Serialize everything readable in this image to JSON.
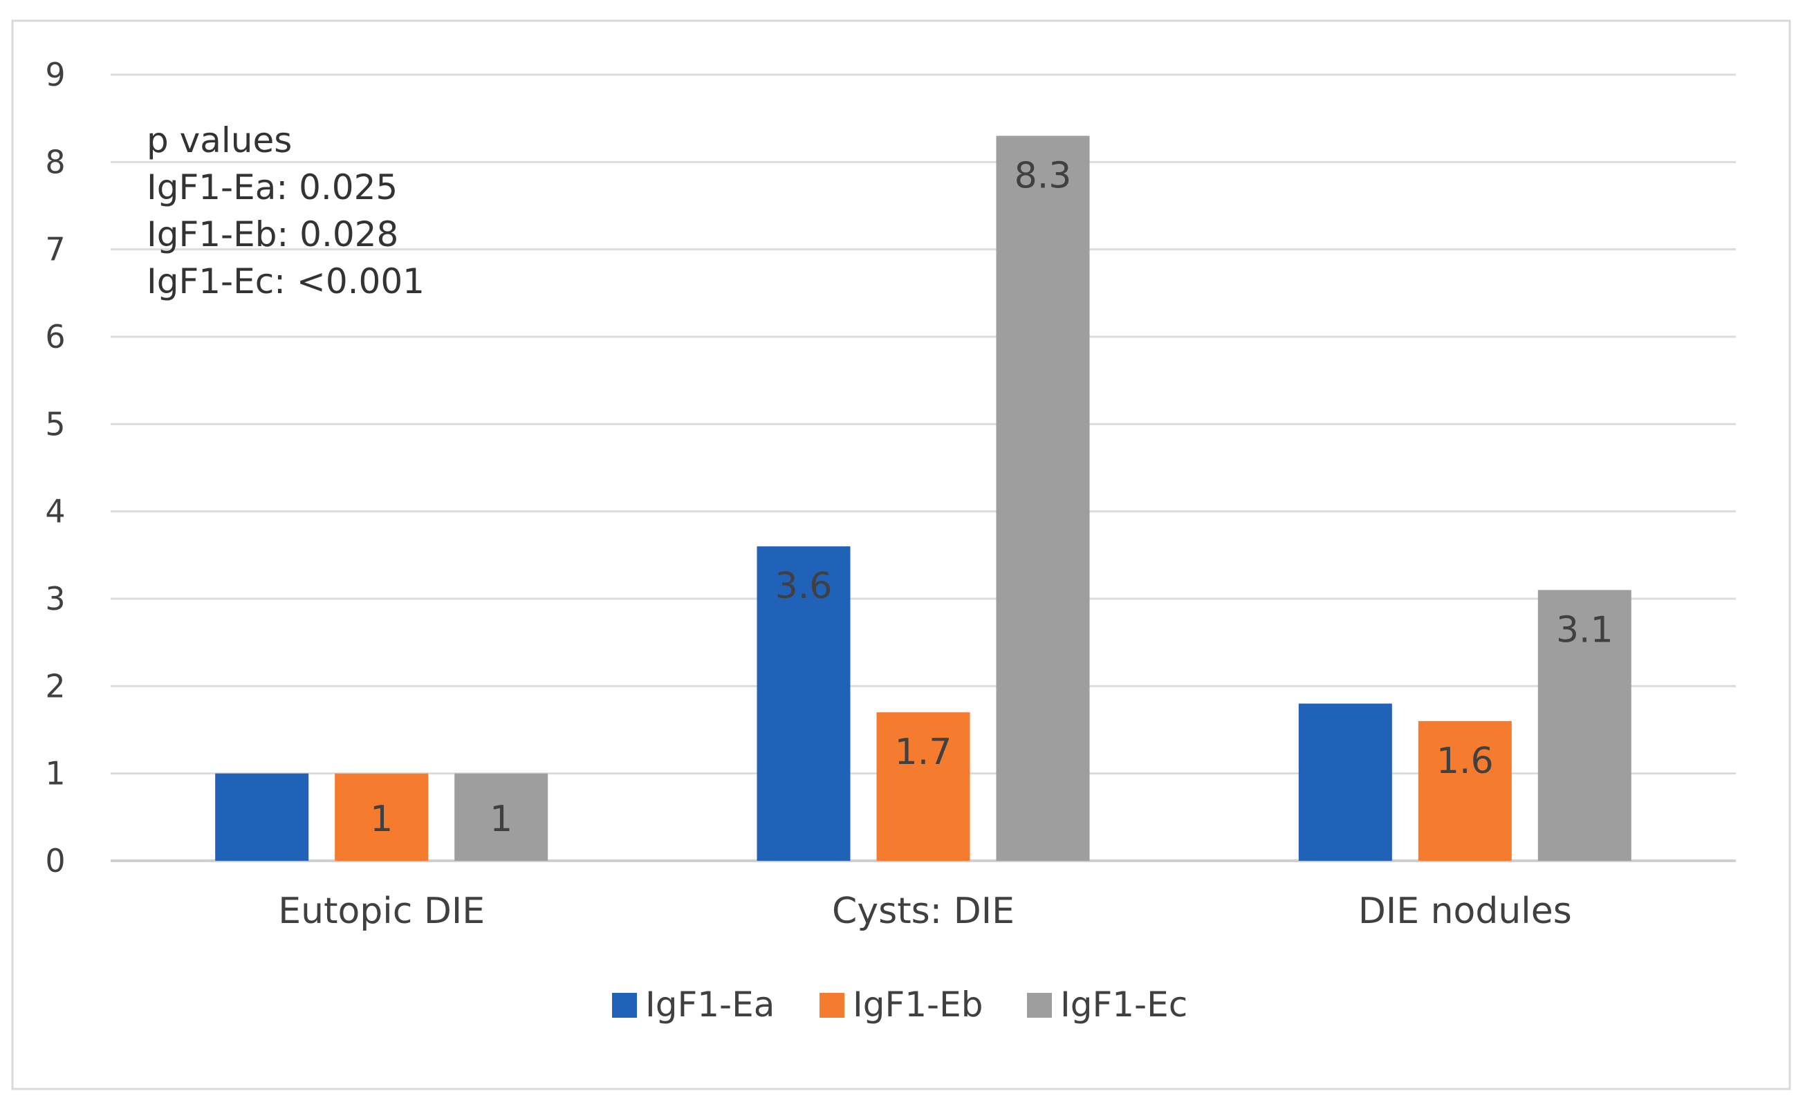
{
  "chart_data": {
    "type": "bar",
    "categories": [
      "Eutopic DIE",
      "Cysts: DIE",
      "DIE nodules"
    ],
    "series": [
      {
        "name": "IgF1-Ea",
        "color": "#2062b8",
        "values": [
          1.0,
          3.6,
          1.8
        ],
        "labels": [
          "",
          "3.6",
          ""
        ]
      },
      {
        "name": "IgF1-Eb",
        "color": "#f57c2e",
        "values": [
          1.0,
          1.7,
          1.6
        ],
        "labels": [
          "1",
          "1.7",
          "1.6"
        ]
      },
      {
        "name": "IgF1-Ec",
        "color": "#9e9e9e",
        "values": [
          1.0,
          8.3,
          3.1
        ],
        "labels": [
          "1",
          "8.3",
          "3.1"
        ]
      }
    ],
    "title": "",
    "xlabel": "",
    "ylabel": "",
    "ylim": [
      0,
      9
    ],
    "yticks": [
      "0",
      "1",
      "2",
      "3",
      "4",
      "5",
      "6",
      "7",
      "8",
      "9"
    ],
    "grid": true,
    "legend_position": "bottom"
  },
  "annotation": {
    "lines": [
      "p values",
      "IgF1-Ea: 0.025",
      "IgF1-Eb: 0.028",
      "IgF1-Ec: <0.001"
    ]
  }
}
